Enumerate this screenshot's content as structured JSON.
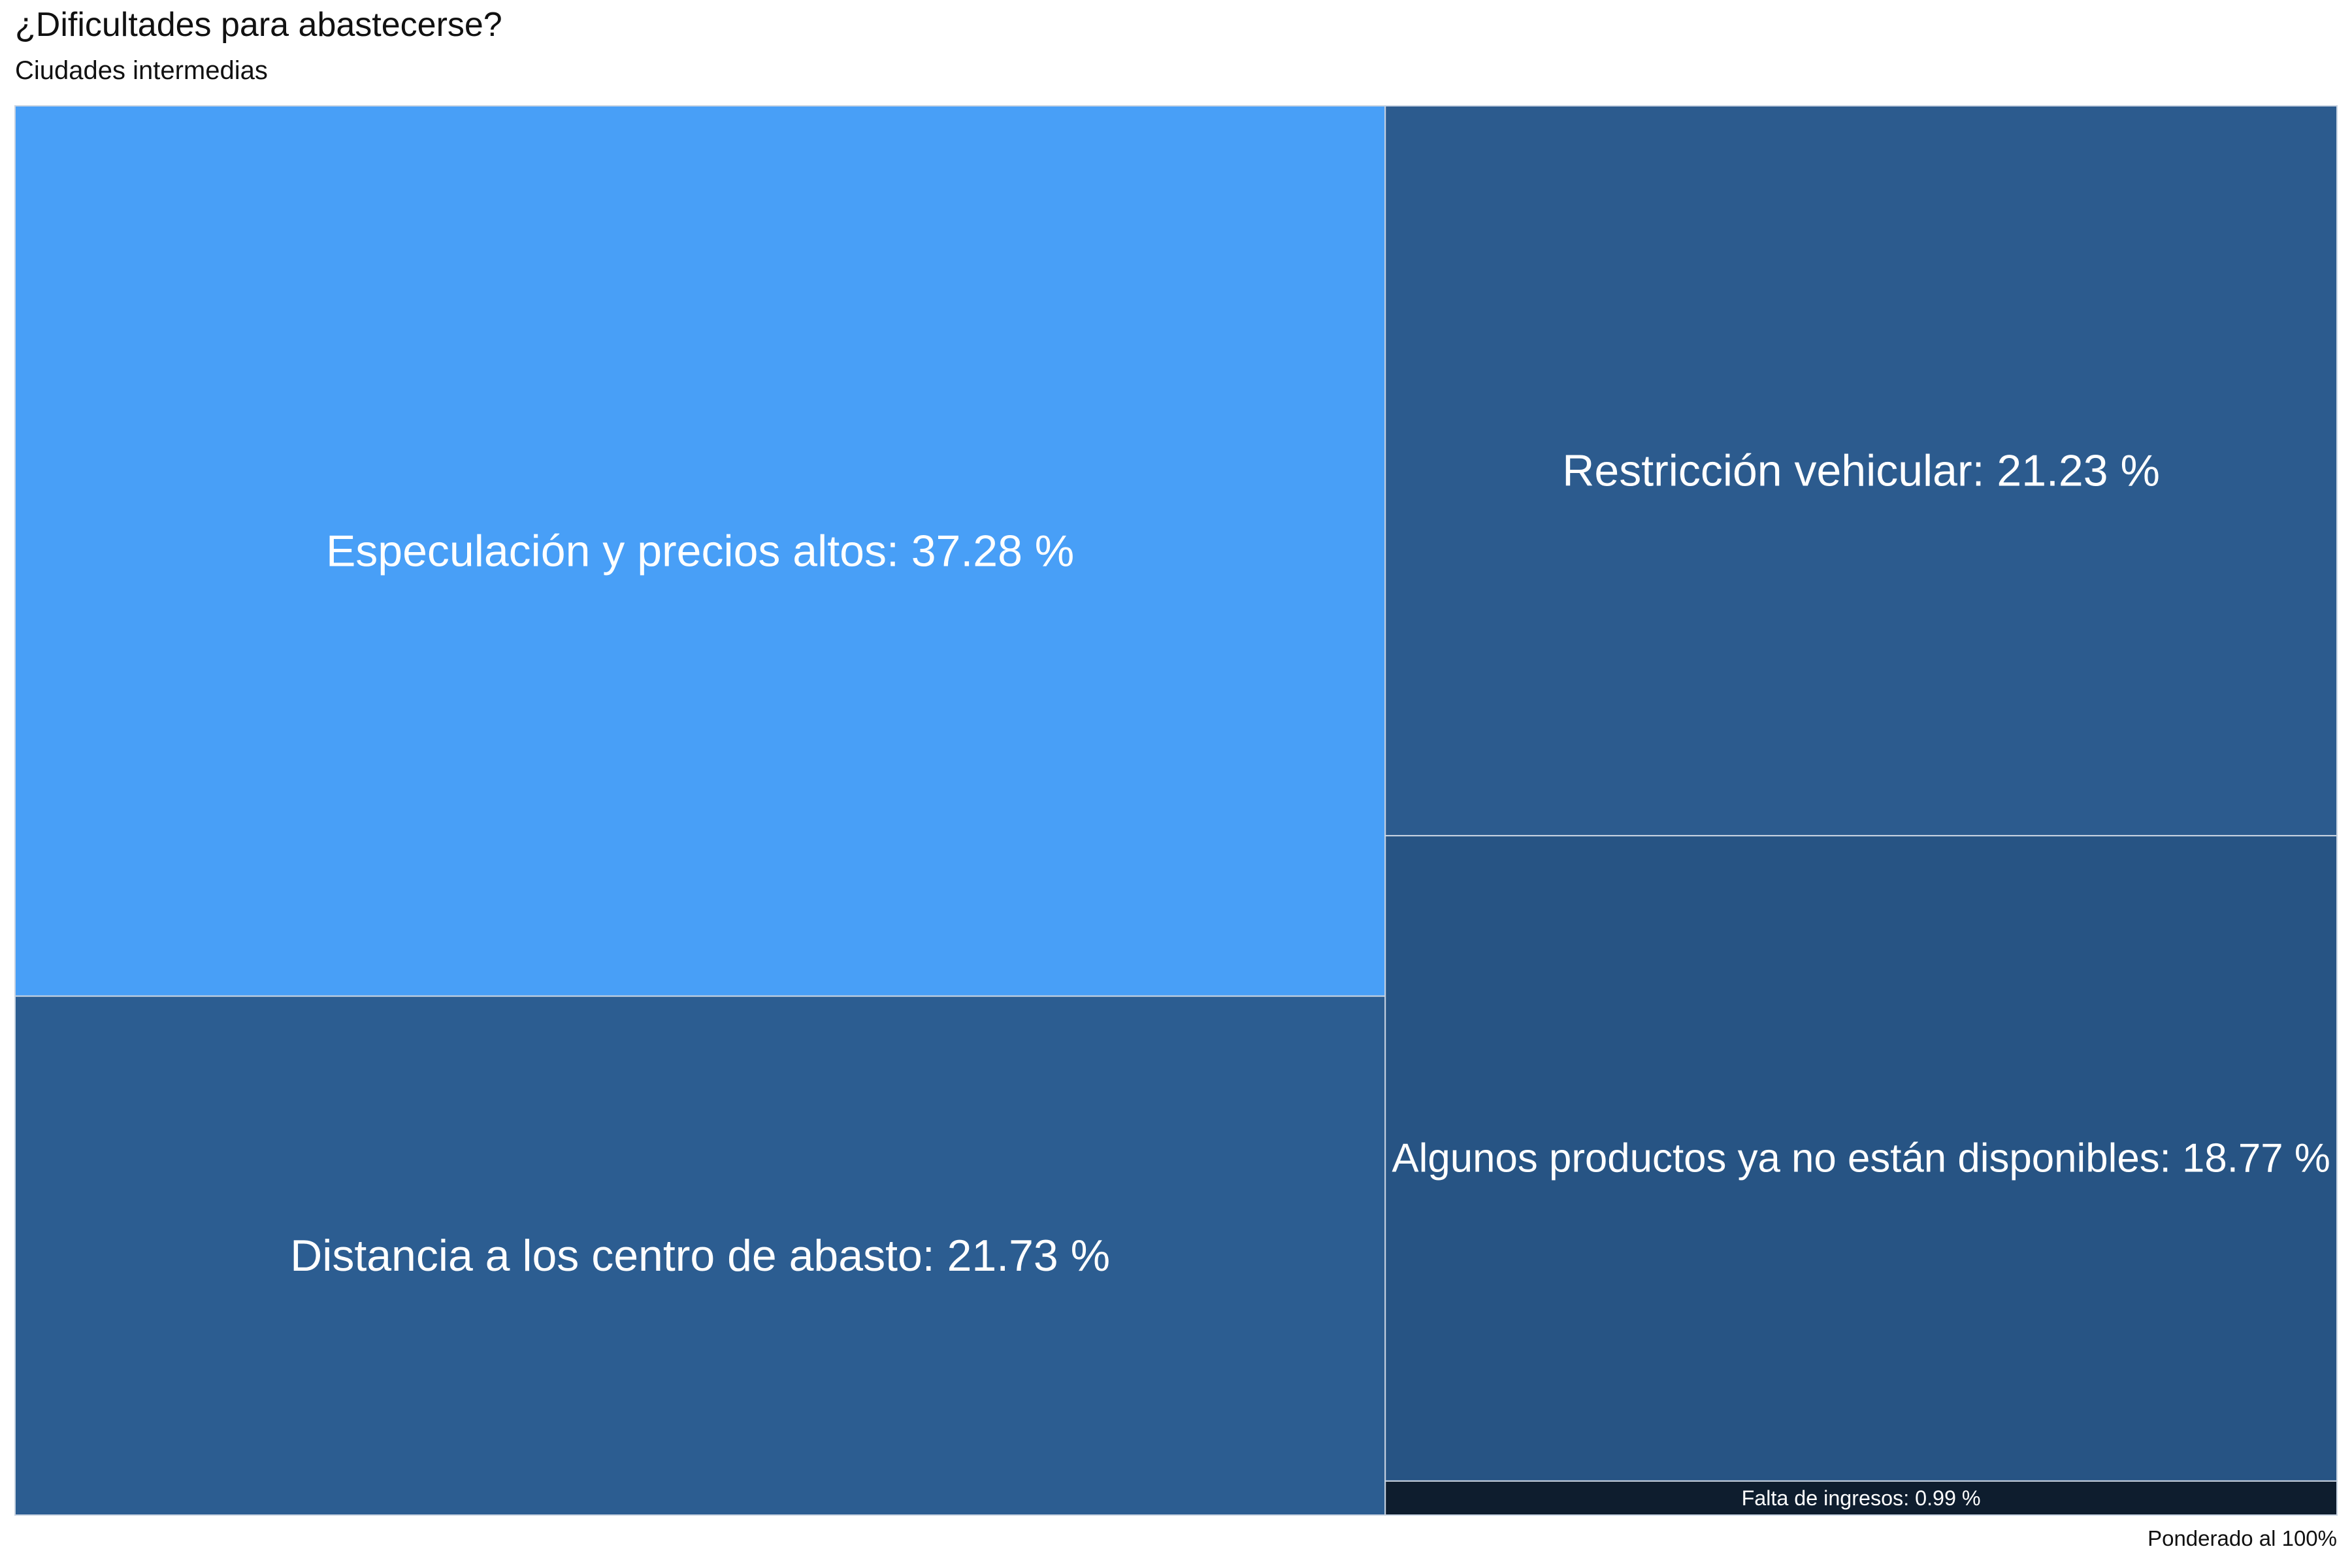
{
  "chart_data": {
    "type": "treemap",
    "title": "¿Dificultades para abastecerse?",
    "subtitle": "Ciudades intermedias",
    "caption": "Ponderado al 100%",
    "unit": "%",
    "items": [
      {
        "name": "Especulación y precios altos",
        "value": 37.28,
        "label": "Especulación y precios altos: 37.28 %",
        "color": "#489ff7",
        "text_color": "#ffffff"
      },
      {
        "name": "Distancia a los centro de abasto",
        "value": 21.73,
        "label": "Distancia a los centro de abasto: 21.73 %",
        "color": "#2c5d91",
        "text_color": "#ffffff"
      },
      {
        "name": "Restricción vehicular",
        "value": 21.23,
        "label": "Restricción vehicular: 21.23 %",
        "color": "#2c5b8e",
        "text_color": "#ffffff"
      },
      {
        "name": "Algunos productos ya no están disponibles",
        "value": 18.77,
        "label": "Algunos productos ya no están disponibles: 18.77 %",
        "color": "#275484",
        "text_color": "#ffffff"
      },
      {
        "name": "Falta de ingresos",
        "value": 0.99,
        "label": "Falta de ingresos: 0.99 %",
        "color": "#0e1d2e",
        "text_color": "#ffffff"
      }
    ]
  }
}
